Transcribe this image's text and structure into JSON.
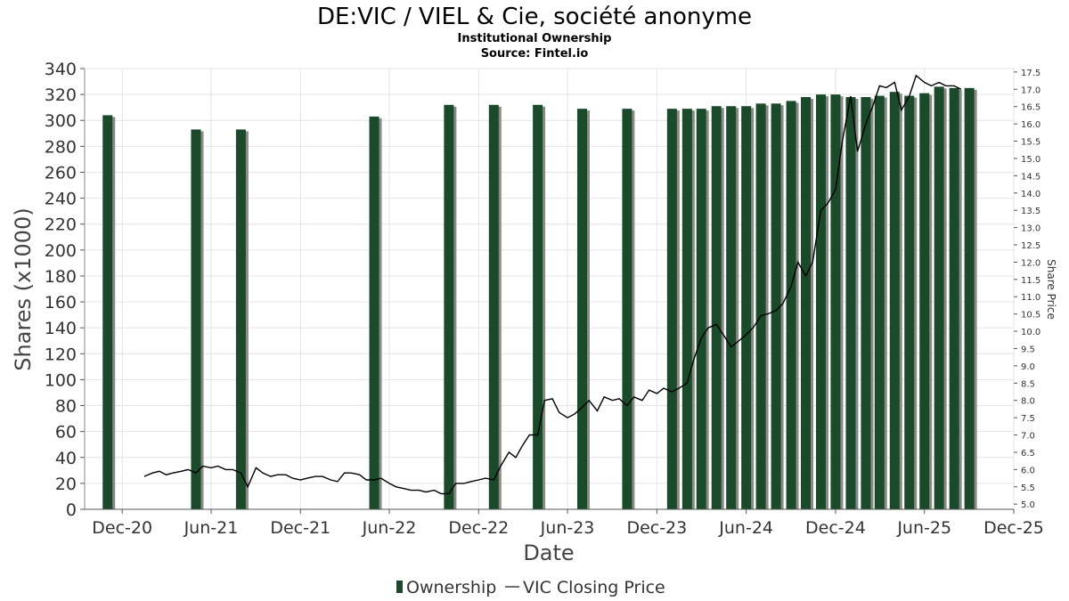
{
  "chart_data": {
    "type": "bar",
    "title": "DE:VIC / VIEL & Cie, société anonyme",
    "subtitle": "Institutional Ownership",
    "source": "Source: Fintel.io",
    "xlabel": "Date",
    "ylabel": "Shares (x1000)",
    "y2label": "Share Price",
    "ylim": [
      0,
      340
    ],
    "y2lim": [
      4.85,
      17.6
    ],
    "xlim": [
      "2020-09-15",
      "2025-12-01"
    ],
    "x_ticks": [
      {
        "date": "2020-12-01",
        "label": "Dec-20"
      },
      {
        "date": "2021-06-01",
        "label": "Jun-21"
      },
      {
        "date": "2021-12-01",
        "label": "Dec-21"
      },
      {
        "date": "2022-06-01",
        "label": "Jun-22"
      },
      {
        "date": "2022-12-01",
        "label": "Dec-22"
      },
      {
        "date": "2023-06-01",
        "label": "Jun-23"
      },
      {
        "date": "2023-12-01",
        "label": "Dec-23"
      },
      {
        "date": "2024-06-01",
        "label": "Jun-24"
      },
      {
        "date": "2024-12-01",
        "label": "Dec-24"
      },
      {
        "date": "2025-06-01",
        "label": "Jun-25"
      },
      {
        "date": "2025-12-01",
        "label": "Dec-25"
      }
    ],
    "y_ticks": [
      0,
      20,
      40,
      60,
      80,
      100,
      120,
      140,
      160,
      180,
      200,
      220,
      240,
      260,
      280,
      300,
      320,
      340
    ],
    "y2_ticks": [
      "5.0",
      "5.5",
      "6.0",
      "6.5",
      "7.0",
      "7.5",
      "8.0",
      "8.5",
      "9.0",
      "9.5",
      "10.0",
      "10.5",
      "11.0",
      "11.5",
      "12.0",
      "12.5",
      "13.0",
      "13.5",
      "14.0",
      "14.5",
      "15.0",
      "15.5",
      "16.0",
      "16.5",
      "17.0",
      "17.5"
    ],
    "grid": true,
    "legend_position": "bottom",
    "series": [
      {
        "name": "Ownership",
        "type": "bar",
        "color": "#1a4a2a",
        "shadow_color": "#8a8a86",
        "x": [
          "2020-11-01",
          "2021-05-01",
          "2021-08-01",
          "2022-05-01",
          "2022-10-01",
          "2023-01-01",
          "2023-04-01",
          "2023-07-01",
          "2023-10-01",
          "2024-01-01",
          "2024-02-01",
          "2024-03-01",
          "2024-04-01",
          "2024-05-01",
          "2024-06-01",
          "2024-07-01",
          "2024-08-01",
          "2024-09-01",
          "2024-10-01",
          "2024-11-01",
          "2024-12-01",
          "2025-01-01",
          "2025-02-01",
          "2025-03-01",
          "2025-04-01",
          "2025-05-01",
          "2025-06-01",
          "2025-07-01",
          "2025-08-01",
          "2025-09-01"
        ],
        "values": [
          304,
          293,
          293,
          303,
          312,
          312,
          312,
          309,
          309,
          309,
          309,
          309,
          311,
          311,
          311,
          313,
          313,
          315,
          318,
          320,
          320,
          318,
          318,
          319,
          322,
          319,
          321,
          326,
          325,
          325
        ]
      },
      {
        "name": "VIC Closing Price",
        "type": "line",
        "axis": "right",
        "color": "#000000",
        "x": [
          "2021-01-15",
          "2021-02-01",
          "2021-02-15",
          "2021-03-01",
          "2021-03-15",
          "2021-04-01",
          "2021-04-15",
          "2021-05-01",
          "2021-05-15",
          "2021-06-01",
          "2021-06-15",
          "2021-07-01",
          "2021-07-15",
          "2021-08-01",
          "2021-08-15",
          "2021-09-01",
          "2021-09-15",
          "2021-10-01",
          "2021-10-15",
          "2021-11-01",
          "2021-11-15",
          "2021-12-01",
          "2021-12-15",
          "2022-01-01",
          "2022-01-15",
          "2022-02-01",
          "2022-02-15",
          "2022-03-01",
          "2022-03-15",
          "2022-04-01",
          "2022-04-15",
          "2022-05-01",
          "2022-05-15",
          "2022-06-01",
          "2022-06-15",
          "2022-07-01",
          "2022-07-15",
          "2022-08-01",
          "2022-08-15",
          "2022-09-01",
          "2022-09-15",
          "2022-10-01",
          "2022-10-15",
          "2022-11-01",
          "2022-11-15",
          "2022-12-01",
          "2022-12-15",
          "2023-01-01",
          "2023-01-15",
          "2023-02-01",
          "2023-02-15",
          "2023-03-01",
          "2023-03-15",
          "2023-04-01",
          "2023-04-15",
          "2023-05-01",
          "2023-05-15",
          "2023-06-01",
          "2023-06-15",
          "2023-07-01",
          "2023-07-15",
          "2023-08-01",
          "2023-08-15",
          "2023-09-01",
          "2023-09-15",
          "2023-10-01",
          "2023-10-15",
          "2023-11-01",
          "2023-11-15",
          "2023-12-01",
          "2023-12-15",
          "2024-01-01",
          "2024-01-15",
          "2024-02-01",
          "2024-02-15",
          "2024-03-01",
          "2024-03-15",
          "2024-04-01",
          "2024-04-15",
          "2024-05-01",
          "2024-05-15",
          "2024-06-01",
          "2024-06-15",
          "2024-07-01",
          "2024-07-15",
          "2024-08-01",
          "2024-08-15",
          "2024-09-01",
          "2024-09-15",
          "2024-10-01",
          "2024-10-15",
          "2024-11-01",
          "2024-11-15",
          "2024-12-01",
          "2024-12-15",
          "2025-01-01",
          "2025-01-15",
          "2025-02-01",
          "2025-02-15",
          "2025-03-01",
          "2025-03-15",
          "2025-04-01",
          "2025-04-15",
          "2025-05-01",
          "2025-05-15",
          "2025-06-01",
          "2025-06-15",
          "2025-07-01",
          "2025-07-15",
          "2025-08-01",
          "2025-08-15"
        ],
        "values": [
          5.8,
          5.9,
          5.95,
          5.85,
          5.9,
          5.95,
          6.0,
          5.9,
          6.1,
          6.05,
          6.1,
          6.0,
          6.0,
          5.9,
          5.5,
          6.05,
          5.9,
          5.8,
          5.85,
          5.85,
          5.75,
          5.7,
          5.75,
          5.8,
          5.8,
          5.7,
          5.65,
          5.9,
          5.9,
          5.85,
          5.7,
          5.7,
          5.75,
          5.6,
          5.5,
          5.45,
          5.4,
          5.4,
          5.35,
          5.4,
          5.3,
          5.3,
          5.6,
          5.6,
          5.65,
          5.7,
          5.75,
          5.7,
          6.1,
          6.5,
          6.35,
          6.7,
          7.0,
          7.0,
          8.0,
          8.05,
          7.65,
          7.5,
          7.6,
          7.8,
          8.0,
          7.7,
          8.1,
          8.0,
          8.05,
          7.85,
          8.1,
          8.0,
          8.3,
          8.2,
          8.35,
          8.25,
          8.35,
          8.5,
          9.2,
          9.8,
          10.1,
          10.2,
          9.9,
          9.55,
          9.7,
          9.9,
          10.1,
          10.45,
          10.5,
          10.6,
          10.8,
          11.3,
          12.0,
          11.6,
          12.0,
          13.5,
          13.7,
          14.1,
          15.5,
          16.8,
          15.2,
          16.0,
          16.5,
          17.1,
          17.05,
          17.2,
          16.4,
          16.8,
          17.4,
          17.2,
          17.1,
          17.2,
          17.1,
          17.1,
          17.0
        ]
      }
    ]
  }
}
